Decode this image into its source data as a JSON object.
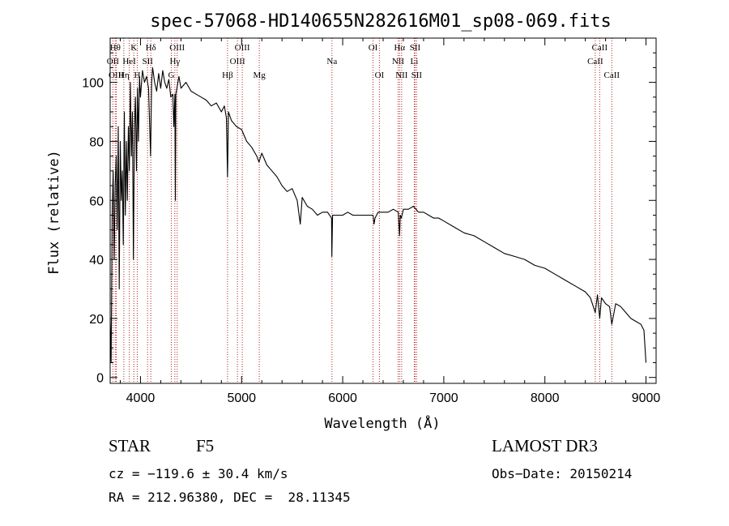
{
  "chart_data": {
    "type": "line",
    "title": "spec-57068-HD140655N282616M01_sp08-069.fits",
    "xlabel": "Wavelength (Å)",
    "ylabel": "Flux (relative)",
    "xlim": [
      3700,
      9100
    ],
    "ylim": [
      -2,
      115
    ],
    "x_ticks": [
      4000,
      5000,
      6000,
      7000,
      8000,
      9000
    ],
    "x_tick_labels": [
      "4000",
      "5000",
      "6000",
      "7000",
      "8000",
      "9000"
    ],
    "y_ticks": [
      0,
      20,
      40,
      60,
      80,
      100
    ],
    "y_tick_labels": [
      "0",
      "20",
      "40",
      "60",
      "80",
      "100"
    ],
    "series": [
      {
        "name": "spectrum",
        "x": [
          3700,
          3710,
          3720,
          3730,
          3740,
          3750,
          3760,
          3770,
          3780,
          3790,
          3800,
          3810,
          3820,
          3830,
          3840,
          3850,
          3860,
          3870,
          3880,
          3890,
          3900,
          3910,
          3920,
          3930,
          3940,
          3950,
          3960,
          3970,
          3980,
          3990,
          4000,
          4020,
          4040,
          4060,
          4080,
          4100,
          4110,
          4120,
          4140,
          4160,
          4180,
          4200,
          4220,
          4240,
          4260,
          4280,
          4300,
          4320,
          4330,
          4340,
          4345,
          4350,
          4360,
          4380,
          4400,
          4450,
          4500,
          4550,
          4600,
          4650,
          4700,
          4750,
          4800,
          4830,
          4850,
          4861,
          4870,
          4900,
          4950,
          5000,
          5050,
          5100,
          5150,
          5172,
          5200,
          5250,
          5300,
          5350,
          5400,
          5450,
          5500,
          5550,
          5580,
          5600,
          5650,
          5700,
          5750,
          5800,
          5850,
          5890,
          5893,
          5900,
          5950,
          6000,
          6050,
          6100,
          6150,
          6200,
          6250,
          6300,
          6310,
          6320,
          6350,
          6400,
          6450,
          6500,
          6550,
          6563,
          6570,
          6580,
          6600,
          6650,
          6700,
          6750,
          6800,
          6850,
          6900,
          6950,
          7000,
          7100,
          7200,
          7300,
          7400,
          7500,
          7600,
          7700,
          7800,
          7900,
          8000,
          8100,
          8200,
          8300,
          8400,
          8450,
          8498,
          8520,
          8542,
          8560,
          8600,
          8640,
          8662,
          8700,
          8750,
          8800,
          8850,
          8900,
          8950,
          8980,
          9000
        ],
        "y": [
          20,
          5,
          55,
          70,
          40,
          65,
          75,
          50,
          85,
          30,
          80,
          60,
          70,
          45,
          90,
          55,
          80,
          60,
          85,
          70,
          100,
          75,
          90,
          40,
          85,
          95,
          70,
          98,
          80,
          102,
          95,
          104,
          100,
          102,
          98,
          75,
          100,
          105,
          100,
          97,
          103,
          98,
          104,
          100,
          98,
          101,
          95,
          96,
          85,
          96,
          60,
          96,
          98,
          102,
          98,
          100,
          97,
          96,
          95,
          94,
          92,
          93,
          90,
          92,
          88,
          68,
          90,
          87,
          85,
          84,
          80,
          78,
          75,
          73,
          76,
          72,
          70,
          68,
          65,
          63,
          64,
          60,
          52,
          61,
          58,
          57,
          55,
          56,
          56,
          54,
          41,
          55,
          55,
          55,
          56,
          55,
          55,
          55,
          55,
          55,
          52,
          54,
          56,
          56,
          56,
          57,
          56,
          48,
          55,
          54,
          57,
          57,
          58,
          56,
          56,
          55,
          54,
          54,
          53,
          51,
          49,
          48,
          46,
          44,
          42,
          41,
          40,
          38,
          37,
          35,
          33,
          31,
          29,
          27,
          22,
          28,
          20,
          27,
          25,
          24,
          18,
          25,
          24,
          22,
          20,
          19,
          18,
          16,
          5
        ],
        "color": "#000000"
      }
    ],
    "lines": [
      {
        "name": "OII",
        "wl": 3727,
        "row": 1
      },
      {
        "name": "Hθ",
        "wl": 3750,
        "row": 0
      },
      {
        "name": "OIII",
        "wl": 3760,
        "row": 2
      },
      {
        "name": "Hη",
        "wl": 3835,
        "row": 2
      },
      {
        "name": "HeI",
        "wl": 3889,
        "row": 1
      },
      {
        "name": "K",
        "wl": 3934,
        "row": 0
      },
      {
        "name": "H",
        "wl": 3968,
        "row": 2
      },
      {
        "name": "SII",
        "wl": 4070,
        "row": 1
      },
      {
        "name": "Hδ",
        "wl": 4102,
        "row": 0
      },
      {
        "name": "G",
        "wl": 4305,
        "row": 2
      },
      {
        "name": "Hγ",
        "wl": 4340,
        "row": 1
      },
      {
        "name": "OIII",
        "wl": 4363,
        "row": 0
      },
      {
        "name": "Hβ",
        "wl": 4861,
        "row": 2
      },
      {
        "name": "OIII",
        "wl": 4959,
        "row": 1
      },
      {
        "name": "OIII",
        "wl": 5007,
        "row": 0
      },
      {
        "name": "Mg",
        "wl": 5175,
        "row": 2
      },
      {
        "name": "Na",
        "wl": 5894,
        "row": 1
      },
      {
        "name": "OI",
        "wl": 6300,
        "row": 0
      },
      {
        "name": "OI",
        "wl": 6363,
        "row": 2
      },
      {
        "name": "NII",
        "wl": 6548,
        "row": 1
      },
      {
        "name": "Hα",
        "wl": 6563,
        "row": 0
      },
      {
        "name": "NII",
        "wl": 6583,
        "row": 2
      },
      {
        "name": "Li",
        "wl": 6708,
        "row": 1
      },
      {
        "name": "SII",
        "wl": 6716,
        "row": 0
      },
      {
        "name": "SII",
        "wl": 6731,
        "row": 2
      },
      {
        "name": "CaII",
        "wl": 8498,
        "row": 1
      },
      {
        "name": "CaII",
        "wl": 8542,
        "row": 0
      },
      {
        "name": "CaII",
        "wl": 8662,
        "row": 2
      }
    ],
    "line_color": "#b22222"
  },
  "info": {
    "class": "STAR",
    "subclass": "F5",
    "survey": "LAMOST DR3",
    "cz": "cz = −119.6 ± 30.4 km/s",
    "obs_date": "Obs−Date: 20150214",
    "radec": "RA = 212.96380, DEC =  28.11345"
  }
}
